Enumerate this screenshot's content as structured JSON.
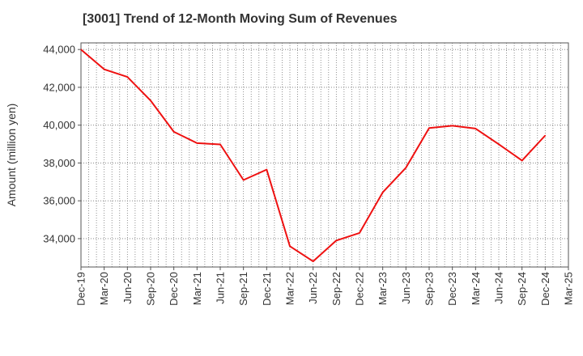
{
  "chart_data": {
    "type": "line",
    "title": "[3001]  Trend of 12-Month Moving Sum of Revenues",
    "xlabel": "",
    "ylabel": "Amount (million yen)",
    "categories": [
      "Dec-19",
      "Mar-20",
      "Jun-20",
      "Sep-20",
      "Dec-20",
      "Mar-21",
      "Jun-21",
      "Sep-21",
      "Dec-21",
      "Mar-22",
      "Jun-22",
      "Sep-22",
      "Dec-22",
      "Mar-23",
      "Jun-23",
      "Sep-23",
      "Dec-23",
      "Mar-24",
      "Jun-24",
      "Sep-24",
      "Dec-24",
      "Mar-25"
    ],
    "series": [
      {
        "values": [
          44000,
          42950,
          42550,
          41300,
          39650,
          39050,
          38980,
          37100,
          37650,
          33600,
          32800,
          33900,
          34300,
          36450,
          37750,
          39850,
          39970,
          39820,
          38990,
          38130,
          39450,
          null
        ],
        "color": "#ee1111"
      }
    ],
    "ylim": [
      32500,
      44350
    ],
    "yticks": [
      34000,
      36000,
      38000,
      40000,
      42000,
      44000
    ],
    "ytick_labels": [
      "34,000",
      "36,000",
      "38,000",
      "40,000",
      "42,000",
      "44,000"
    ],
    "grid": true,
    "grid_style": "dotted"
  }
}
